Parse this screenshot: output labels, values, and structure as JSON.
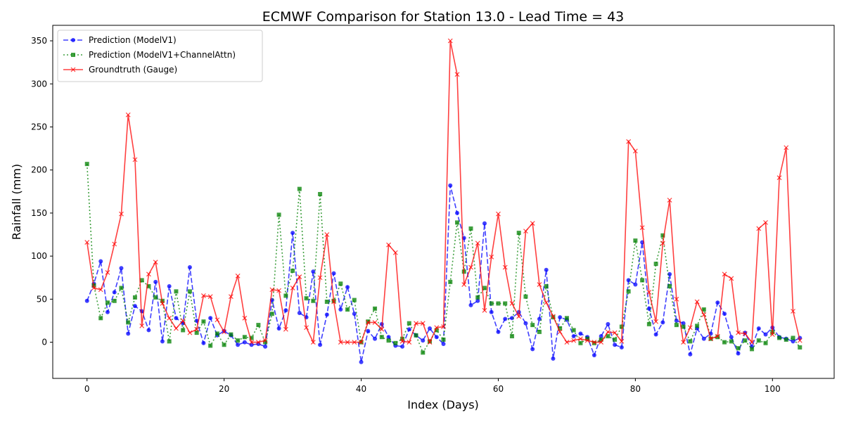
{
  "chart_data": {
    "type": "line",
    "title": "ECMWF Comparison for Station 13.0 - Lead Time = 43",
    "xlabel": "Index (Days)",
    "ylabel": "Rainfall (mm)",
    "xlim": [
      -5,
      109
    ],
    "ylim": [
      -42,
      368
    ],
    "xticks": [
      0,
      20,
      40,
      60,
      80,
      100
    ],
    "yticks": [
      0,
      50,
      100,
      150,
      200,
      250,
      300,
      350
    ],
    "grid": false,
    "legend_position": "top-left",
    "series": [
      {
        "name": "Prediction (ModelV1)",
        "color": "#0000ff",
        "linestyle": "dashed",
        "marker": "circle",
        "values": [
          48,
          68,
          94,
          35,
          58,
          86,
          10,
          42,
          36,
          14,
          70,
          1,
          65,
          28,
          22,
          87,
          25,
          -1,
          28,
          8,
          13,
          8,
          -3,
          0,
          -3,
          -2,
          -5,
          49,
          16,
          37,
          127,
          34,
          29,
          82,
          -3,
          32,
          80,
          38,
          64,
          33,
          -23,
          13,
          4,
          21,
          6,
          -4,
          -5,
          15,
          8,
          2,
          16,
          6,
          -2,
          182,
          150,
          121,
          43,
          48,
          138,
          35,
          12,
          27,
          28,
          35,
          22,
          -8,
          27,
          84,
          -19,
          29,
          26,
          7,
          10,
          6,
          -15,
          7,
          21,
          -3,
          -6,
          72,
          67,
          116,
          39,
          9,
          23,
          79,
          25,
          22,
          -14,
          16,
          4,
          10,
          46,
          33,
          6,
          -13,
          11,
          -5,
          16,
          9,
          17,
          6,
          4,
          1,
          5
        ]
      },
      {
        "name": "Prediction (ModelV1+ChannelAttn)",
        "color": "#008000",
        "linestyle": "dotted",
        "marker": "square",
        "values": [
          207,
          66,
          28,
          46,
          48,
          63,
          23,
          52,
          72,
          65,
          52,
          48,
          1,
          59,
          14,
          59,
          11,
          24,
          -4,
          10,
          -3,
          9,
          2,
          6,
          5,
          20,
          0,
          33,
          148,
          54,
          83,
          178,
          51,
          48,
          172,
          47,
          48,
          68,
          38,
          49,
          0,
          24,
          39,
          6,
          2,
          -1,
          4,
          22,
          8,
          -12,
          1,
          14,
          3,
          70,
          139,
          82,
          132,
          52,
          63,
          45,
          45,
          45,
          7,
          127,
          53,
          20,
          12,
          65,
          29,
          16,
          28,
          14,
          -1,
          4,
          -1,
          3,
          7,
          3,
          18,
          59,
          118,
          72,
          21,
          91,
          124,
          65,
          20,
          18,
          1,
          19,
          38,
          4,
          6,
          0,
          1,
          -7,
          2,
          -8,
          2,
          -1,
          12,
          5,
          3,
          5,
          -6
        ]
      },
      {
        "name": "Groundtruth (Gauge)",
        "color": "#ff0000",
        "linestyle": "solid",
        "marker": "x",
        "values": [
          116,
          63,
          61,
          81,
          114,
          149,
          264,
          212,
          19,
          79,
          93,
          45,
          28,
          16,
          25,
          11,
          15,
          54,
          53,
          26,
          12,
          53,
          77,
          28,
          0,
          0,
          2,
          61,
          60,
          15,
          63,
          76,
          17,
          0,
          75,
          125,
          47,
          0,
          0,
          0,
          0,
          23,
          23,
          15,
          113,
          104,
          1,
          0,
          22,
          22,
          0,
          17,
          18,
          350,
          311,
          67,
          87,
          115,
          37,
          99,
          149,
          87,
          45,
          30,
          129,
          138,
          67,
          46,
          30,
          12,
          0,
          2,
          4,
          2,
          0,
          0,
          12,
          11,
          1,
          233,
          222,
          133,
          58,
          24,
          115,
          165,
          50,
          0,
          17,
          47,
          32,
          4,
          7,
          79,
          74,
          11,
          10,
          0,
          132,
          139,
          9,
          191,
          226,
          36,
          2
        ]
      }
    ]
  }
}
